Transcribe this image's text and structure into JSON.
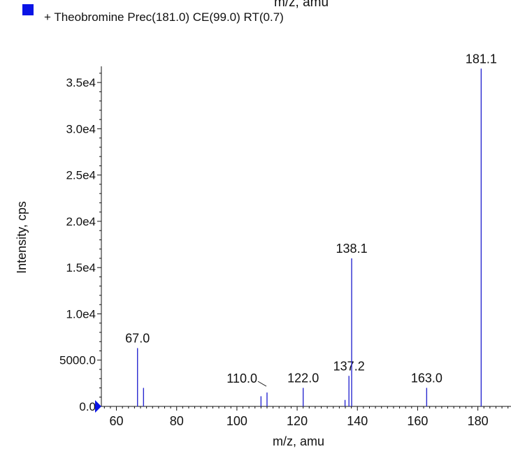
{
  "top_clipped_label": "m/z, amu",
  "legend": {
    "text": "+ Theobromine Prec(181.0) CE(99.0) RT(0.7)",
    "marker_color": "#0a14e6"
  },
  "chart_data": {
    "type": "bar",
    "xlabel": "m/z, amu",
    "ylabel": "Intensity, cps",
    "xlim": [
      55,
      191
    ],
    "ylim": [
      0,
      37500
    ],
    "xticks": [
      60,
      80,
      100,
      120,
      140,
      160,
      180
    ],
    "yticks": [
      {
        "value": 0,
        "label": "0.0"
      },
      {
        "value": 5000,
        "label": "5000.0"
      },
      {
        "value": 10000,
        "label": "1.0e4"
      },
      {
        "value": 15000,
        "label": "1.5e4"
      },
      {
        "value": 20000,
        "label": "2.0e4"
      },
      {
        "value": 25000,
        "label": "2.5e4"
      },
      {
        "value": 30000,
        "label": "3.0e4"
      },
      {
        "value": 35000,
        "label": "3.5e4"
      }
    ],
    "peak_color": "#2a2ad0",
    "peaks": [
      {
        "x": 67.0,
        "y": 6300,
        "label": "67.0"
      },
      {
        "x": 69.0,
        "y": 2000
      },
      {
        "x": 108.0,
        "y": 1100
      },
      {
        "x": 110.0,
        "y": 1500,
        "label": "110.0"
      },
      {
        "x": 122.0,
        "y": 2000,
        "label": "122.0"
      },
      {
        "x": 135.9,
        "y": 700
      },
      {
        "x": 137.2,
        "y": 3300,
        "label": "137.2"
      },
      {
        "x": 138.1,
        "y": 16000,
        "label": "138.1"
      },
      {
        "x": 163.0,
        "y": 2000,
        "label": "163.0"
      },
      {
        "x": 181.1,
        "y": 36500,
        "label": "181.1"
      }
    ]
  }
}
